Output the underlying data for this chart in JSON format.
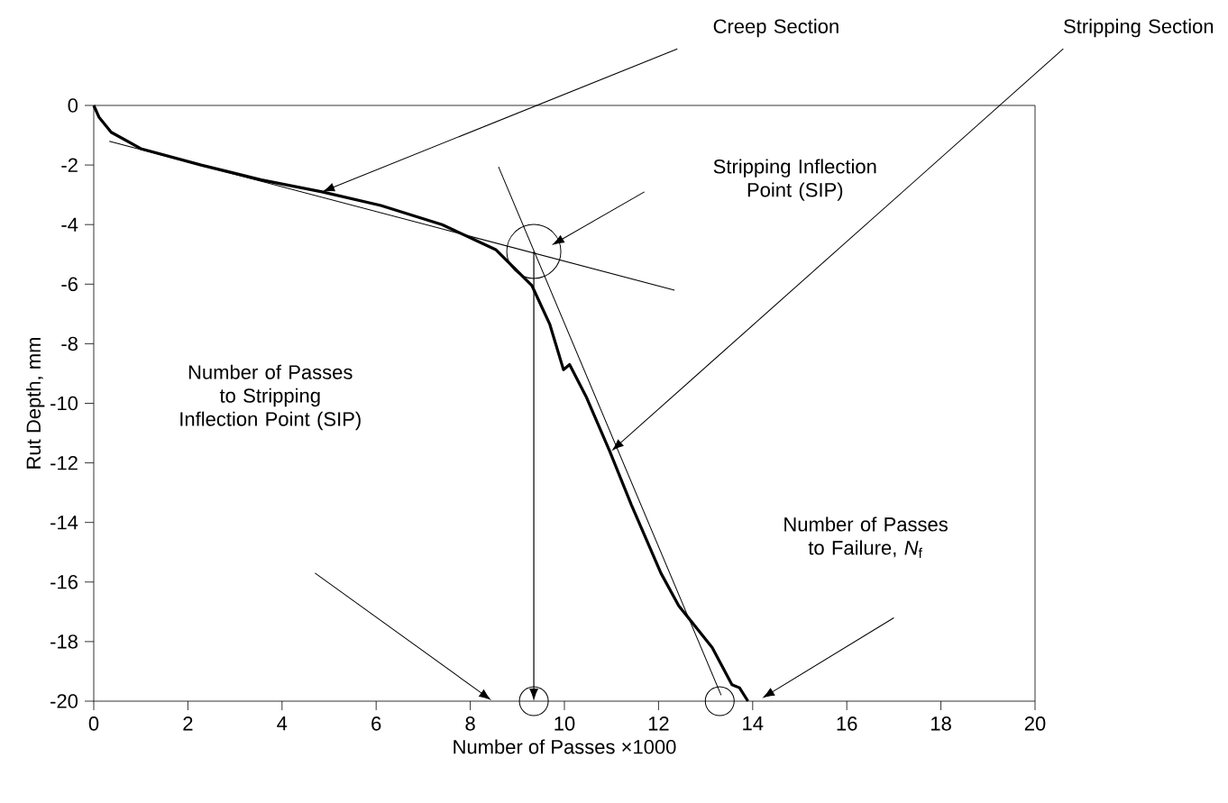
{
  "chart_data": {
    "type": "line",
    "xlabel": "Number of Passes ×1000",
    "ylabel": "Rut Depth, mm",
    "series": [
      {
        "color": "#000000",
        "x": [
          0,
          0.11,
          0.37,
          1.0,
          2.28,
          3.56,
          4.85,
          6.1,
          7.4,
          8.54,
          9.31,
          9.69,
          9.98,
          10.11,
          10.46,
          10.96,
          11.42,
          12.05,
          12.43,
          13.14,
          13.56,
          13.72,
          13.9
        ],
        "values": [
          0,
          -0.39,
          -0.9,
          -1.45,
          -2.0,
          -2.5,
          -2.9,
          -3.36,
          -4.0,
          -4.84,
          -6.05,
          -7.35,
          -8.87,
          -8.7,
          -9.77,
          -11.6,
          -13.4,
          -15.7,
          -16.8,
          -18.2,
          -19.45,
          -19.55,
          -20.0
        ]
      },
      {
        "type": "line",
        "color": "#000000",
        "x": [
          0.33,
          12.34
        ],
        "values": [
          -1.2,
          -6.2
        ]
      },
      {
        "type": "line",
        "color": "#000000",
        "x": [
          8.6,
          13.33
        ],
        "values": [
          -2.06,
          -19.8
        ]
      }
    ],
    "xlim": [
      0,
      20
    ],
    "ylim": [
      -20,
      0
    ],
    "xticks": [
      0,
      2,
      4,
      6,
      8,
      10,
      12,
      14,
      16,
      18,
      20
    ],
    "yticks": [
      -20,
      -18,
      -16,
      -14,
      -12,
      -10,
      -8,
      -6,
      -4,
      -2,
      0
    ],
    "grid": false,
    "marker": "none",
    "line_style": "solid",
    "annotations": [
      "Creep Section",
      "Stripping Section",
      "Stripping Inflection Point (SIP)",
      "Number of Passes to Stripping Inflection Point (SIP)",
      "Number of Passes to Failure, *N*$_{f}$"
    ]
  }
}
